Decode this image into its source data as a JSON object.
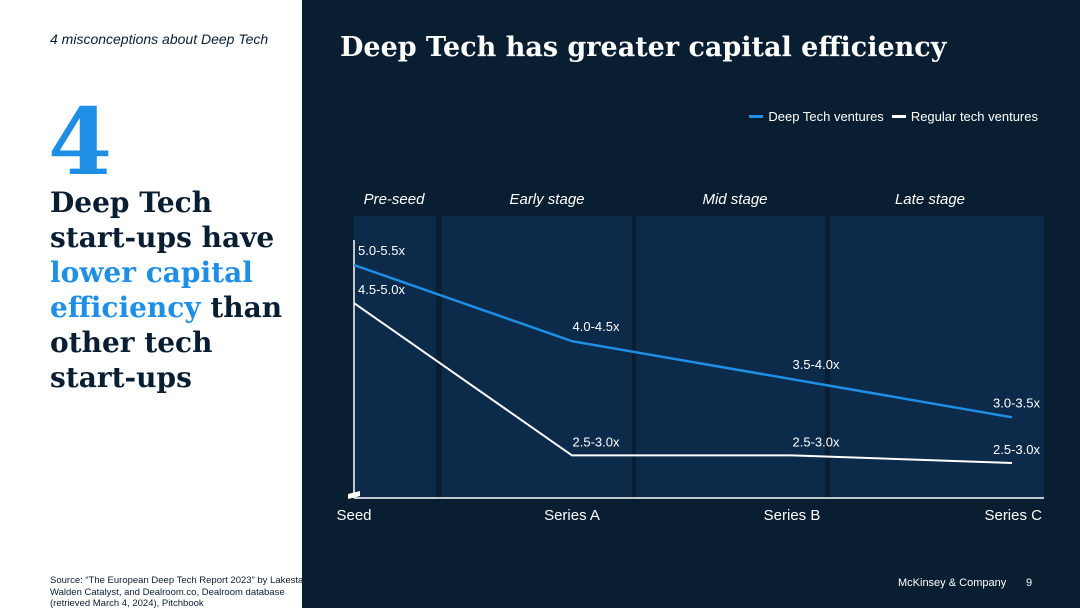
{
  "sidebar": {
    "kicker": "4 misconceptions about Deep Tech",
    "number": "4",
    "headline_part1": "Deep Tech start-ups have ",
    "headline_highlight": "lower capital efficiency",
    "headline_part2": " than other tech start-ups",
    "source": "Source: “The European Deep Tech Report 2023” by Lakestar, Walden Catalyst, and Dealroom.co, Dealroom database (retrieved March 4, 2024), Pitchbook"
  },
  "footer": {
    "brand": "McKinsey & Company",
    "page": "9"
  },
  "colors": {
    "accent": "#1f8fe5",
    "dark": "#0a1e32",
    "band": "#0c2a4a",
    "white": "#ffffff"
  },
  "chart_data": {
    "type": "line",
    "title": "Deep Tech has greater capital efficiency",
    "categories": [
      "Seed",
      "Series A",
      "Series B",
      "Series C"
    ],
    "stages": [
      "Pre-seed",
      "Early stage",
      "Mid stage",
      "Late stage"
    ],
    "series": [
      {
        "name": "Deep Tech ventures",
        "color": "#1f8fe5",
        "values": [
          5.25,
          4.25,
          3.75,
          3.25
        ],
        "labels": [
          "5.0-5.5x",
          "4.0-4.5x",
          "3.5-4.0x",
          "3.0-3.5x"
        ]
      },
      {
        "name": "Regular tech ventures",
        "color": "#ffffff",
        "values": [
          4.75,
          2.75,
          2.75,
          2.65
        ],
        "labels": [
          "4.5-5.0x",
          "2.5-3.0x",
          "2.5-3.0x",
          "2.5-3.0x"
        ]
      }
    ],
    "ylim": [
      2.4,
      5.5
    ],
    "xlabel": "",
    "ylabel": "",
    "grid": false,
    "legend": "top-right"
  }
}
